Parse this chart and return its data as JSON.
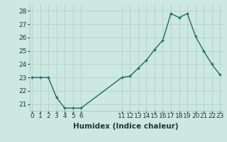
{
  "x": [
    0,
    1,
    2,
    3,
    4,
    5,
    6,
    11,
    12,
    13,
    14,
    15,
    16,
    17,
    18,
    19,
    20,
    21,
    22,
    23
  ],
  "y": [
    23.0,
    23.0,
    23.0,
    21.5,
    20.7,
    20.7,
    20.7,
    23.0,
    23.1,
    23.7,
    24.3,
    25.1,
    25.8,
    27.8,
    27.5,
    27.8,
    26.1,
    25.0,
    24.0,
    23.2
  ],
  "bg_color": "#cce8e0",
  "line_color": "#1e6b5e",
  "marker_color": "#1e6b5e",
  "grid_color": "#aacfc6",
  "xlabel": "Humidex (Indice chaleur)",
  "ylim": [
    20.5,
    28.5
  ],
  "yticks": [
    21,
    22,
    23,
    24,
    25,
    26,
    27,
    28
  ],
  "xtick_positions": [
    0,
    1,
    2,
    3,
    4,
    5,
    6,
    11,
    12,
    13,
    14,
    15,
    16,
    17,
    18,
    19,
    20,
    21,
    22,
    23
  ],
  "xtick_labels": [
    "0",
    "1",
    "2",
    "3",
    "4",
    "5",
    "6",
    "11",
    "12",
    "13",
    "14",
    "15",
    "16",
    "17",
    "18",
    "19",
    "20",
    "21",
    "22",
    "23"
  ],
  "xlim": [
    -0.3,
    23.3
  ],
  "xlabel_fontsize": 7.5,
  "tick_fontsize": 6.5,
  "line_width": 1.0,
  "marker_size": 2.5
}
